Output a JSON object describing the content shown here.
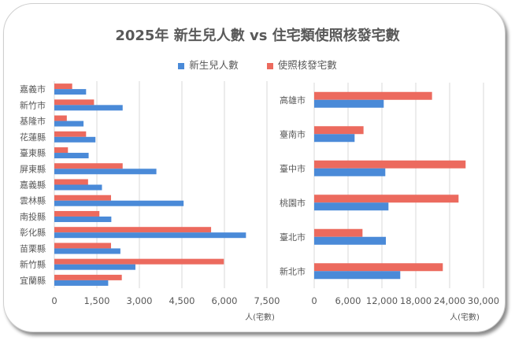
{
  "chart_data": {
    "title": "2025年 新生兒人數 vs 住宅類使照核發宅數",
    "legend": [
      {
        "name": "新生兒人數",
        "color": "#4a8ad8"
      },
      {
        "name": "使照核發宅數",
        "color": "#ec6a5e"
      }
    ],
    "legend_position": "top",
    "charts": [
      {
        "type": "bar",
        "orientation": "horizontal",
        "categories": [
          "嘉義市",
          "新竹市",
          "基隆市",
          "花蓮縣",
          "臺東縣",
          "屏東縣",
          "嘉義縣",
          "雲林縣",
          "南投縣",
          "彰化縣",
          "苗栗縣",
          "新竹縣",
          "宜蘭縣"
        ],
        "series": [
          {
            "name": "新生兒人數",
            "values": [
              1120,
              2410,
              1030,
              1450,
              1210,
              3600,
              1680,
              4560,
              2010,
              6760,
              2330,
              2860,
              1900
            ]
          },
          {
            "name": "使照核發宅數",
            "values": [
              630,
              1400,
              440,
              1120,
              480,
              2410,
              1190,
              2000,
              1590,
              5530,
              2000,
              5980,
              2380
            ]
          }
        ],
        "xlim": [
          0,
          7500
        ],
        "xticks": [
          "0",
          "1,500",
          "3,000",
          "4,500",
          "6,000",
          "7,500"
        ],
        "xlabel": "人(宅數)",
        "grid": true
      },
      {
        "type": "bar",
        "orientation": "horizontal",
        "categories": [
          "高雄市",
          "臺南市",
          "臺中市",
          "桃園市",
          "臺北市",
          "新北市"
        ],
        "series": [
          {
            "name": "新生兒人數",
            "values": [
              12320,
              7160,
              12600,
              13160,
              12700,
              15250
            ]
          },
          {
            "name": "使照核發宅數",
            "values": [
              20880,
              8740,
              26830,
              25580,
              8560,
              22790
            ]
          }
        ],
        "xlim": [
          0,
          30000
        ],
        "xticks": [
          "0",
          "6,000",
          "12,000",
          "18,000",
          "24,000",
          "30,000"
        ],
        "xlabel": "人(宅數)",
        "grid": true
      }
    ]
  }
}
